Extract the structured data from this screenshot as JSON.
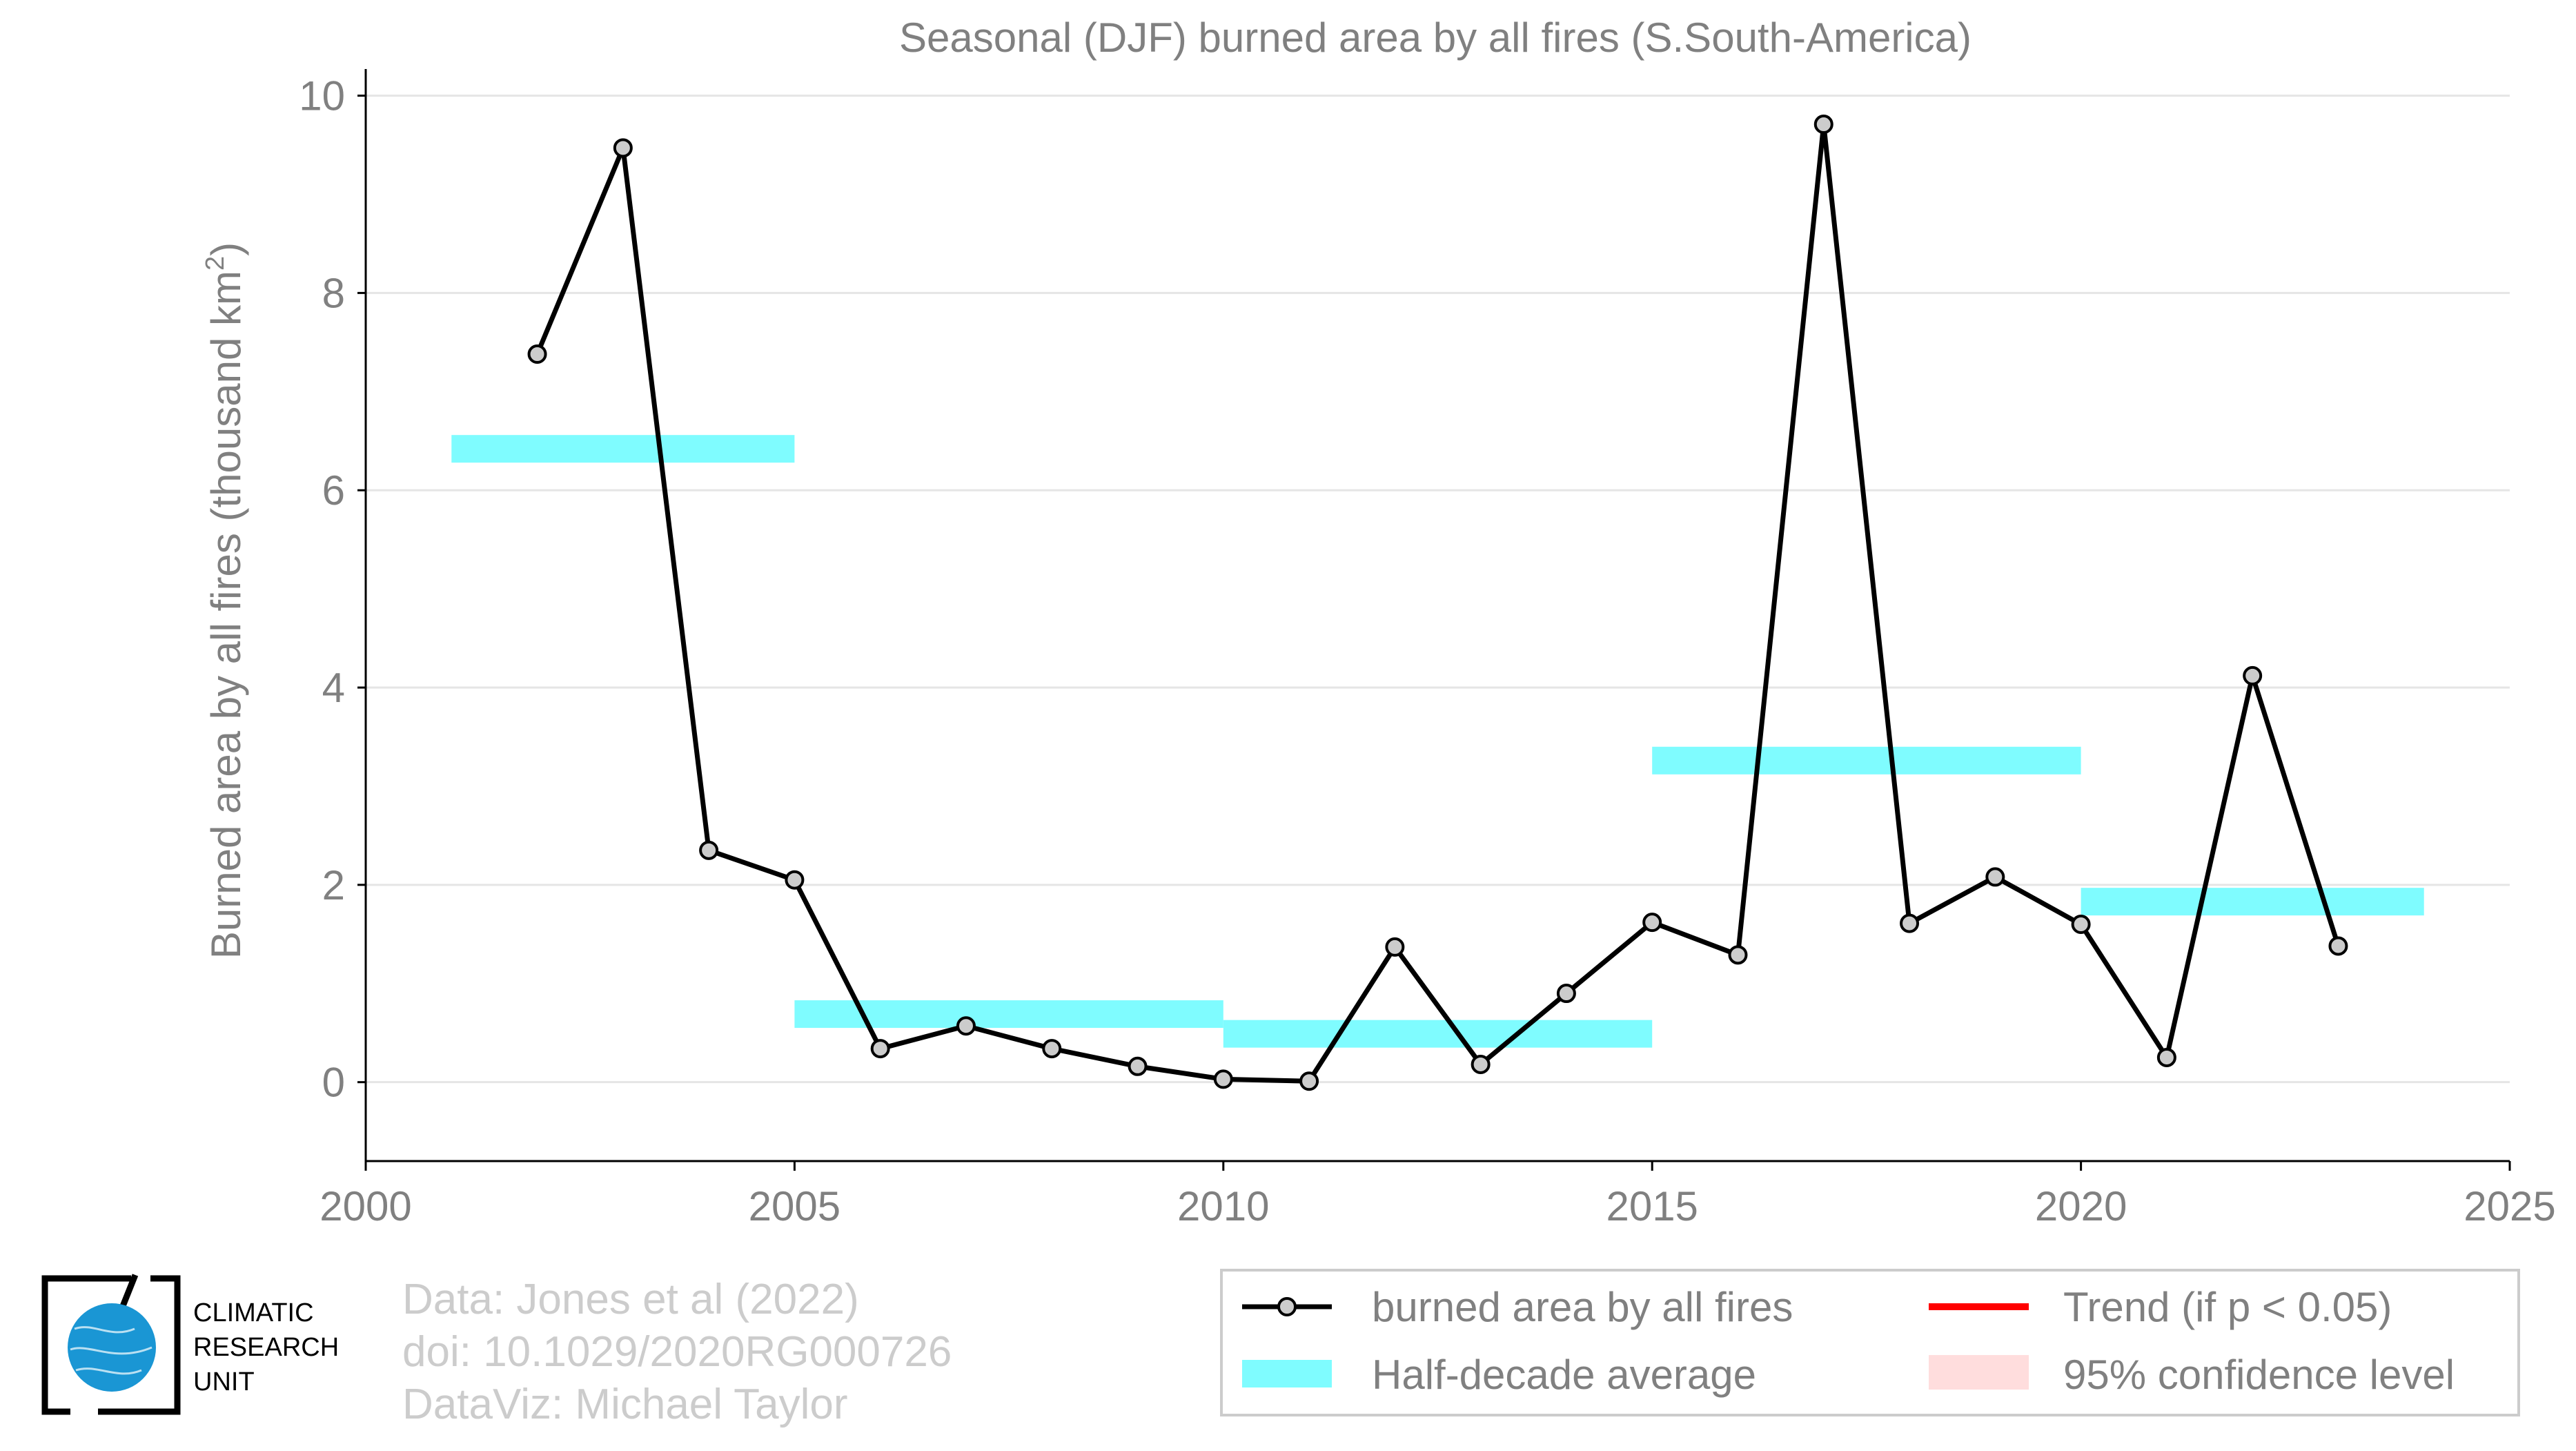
{
  "chart_data": {
    "type": "line",
    "title": "Seasonal (DJF) burned area by all fires (S.South-America)",
    "ylabel_main": "Burned area by all fires (thousand km",
    "ylabel_sup": "2",
    "ylabel_end": ")",
    "xlim": [
      2000,
      2025
    ],
    "ylim": [
      -0.8,
      10.2
    ],
    "x_ticks": [
      "2000",
      "2005",
      "2010",
      "2015",
      "2020",
      "2025"
    ],
    "y_ticks": [
      "0",
      "2",
      "4",
      "6",
      "8",
      "10"
    ],
    "grid": true,
    "series": [
      {
        "name": "burned area by all fires",
        "x": [
          2002,
          2003,
          2004,
          2005,
          2006,
          2007,
          2008,
          2009,
          2010,
          2011,
          2012,
          2013,
          2014,
          2015,
          2016,
          2017,
          2018,
          2019,
          2020,
          2021,
          2022,
          2023
        ],
        "y": [
          7.38,
          9.47,
          2.35,
          2.05,
          0.34,
          0.57,
          0.34,
          0.16,
          0.03,
          0.01,
          1.37,
          0.18,
          0.9,
          1.62,
          1.29,
          9.71,
          1.61,
          2.08,
          1.6,
          0.25,
          4.12,
          1.38
        ]
      }
    ],
    "half_decade_average": [
      {
        "start": 2001,
        "end": 2005,
        "value": 6.42
      },
      {
        "start": 2005,
        "end": 2010,
        "value": 0.69
      },
      {
        "start": 2010,
        "end": 2015,
        "value": 0.49
      },
      {
        "start": 2015,
        "end": 2020,
        "value": 3.26
      },
      {
        "start": 2020,
        "end": 2024,
        "value": 1.83
      }
    ],
    "legend": {
      "position": "bottom-right",
      "entries": [
        "burned area by all fires",
        "Trend (if p < 0.05)",
        "Half-decade average",
        "95% confidence level"
      ]
    },
    "colors": {
      "line": "#000000",
      "marker_fill": "#cccccc",
      "half_decade": "#7ffcff",
      "trend": "#ff0000",
      "confidence": "#ffdddd",
      "text": "#808080",
      "grid": "#e5e5e5",
      "credit": "#cccccc",
      "logo_blue": "#1a96d4"
    }
  },
  "credits": {
    "line1": "Data: Jones et al (2022)",
    "line2": "doi: 10.1029/2020RG000726",
    "line3": "DataViz: Michael Taylor"
  },
  "logo": {
    "line1": "CLIMATIC",
    "line2": "RESEARCH",
    "line3": "UNIT"
  }
}
